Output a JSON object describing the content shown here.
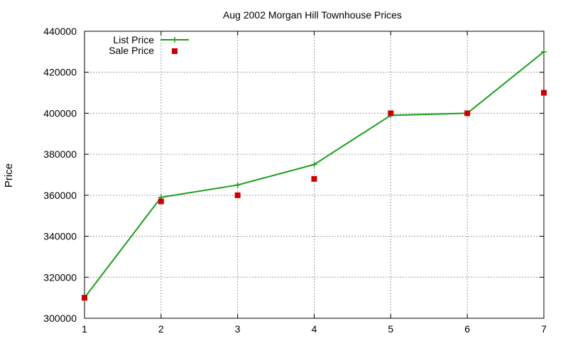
{
  "chart_data": {
    "type": "line",
    "title": "Aug 2002 Morgan Hill Townhouse Prices",
    "xlabel": "",
    "ylabel": "Price",
    "x": [
      1,
      2,
      3,
      4,
      5,
      6,
      7
    ],
    "xlim": [
      1,
      7
    ],
    "ylim": [
      300000,
      440000
    ],
    "xticks": [
      "1",
      "2",
      "3",
      "4",
      "5",
      "6",
      "7"
    ],
    "yticks": [
      "300000",
      "320000",
      "340000",
      "360000",
      "380000",
      "400000",
      "420000",
      "440000"
    ],
    "grid": true,
    "legend_position": "top-left",
    "series": [
      {
        "name": "List Price",
        "style": "line+points",
        "color": "#1a9e1a",
        "values": [
          310000,
          359000,
          365000,
          375000,
          399000,
          400000,
          430000
        ]
      },
      {
        "name": "Sale Price",
        "style": "points",
        "color": "#cc0000",
        "values": [
          310000,
          357000,
          360000,
          368000,
          400000,
          400000,
          410000
        ]
      }
    ]
  }
}
